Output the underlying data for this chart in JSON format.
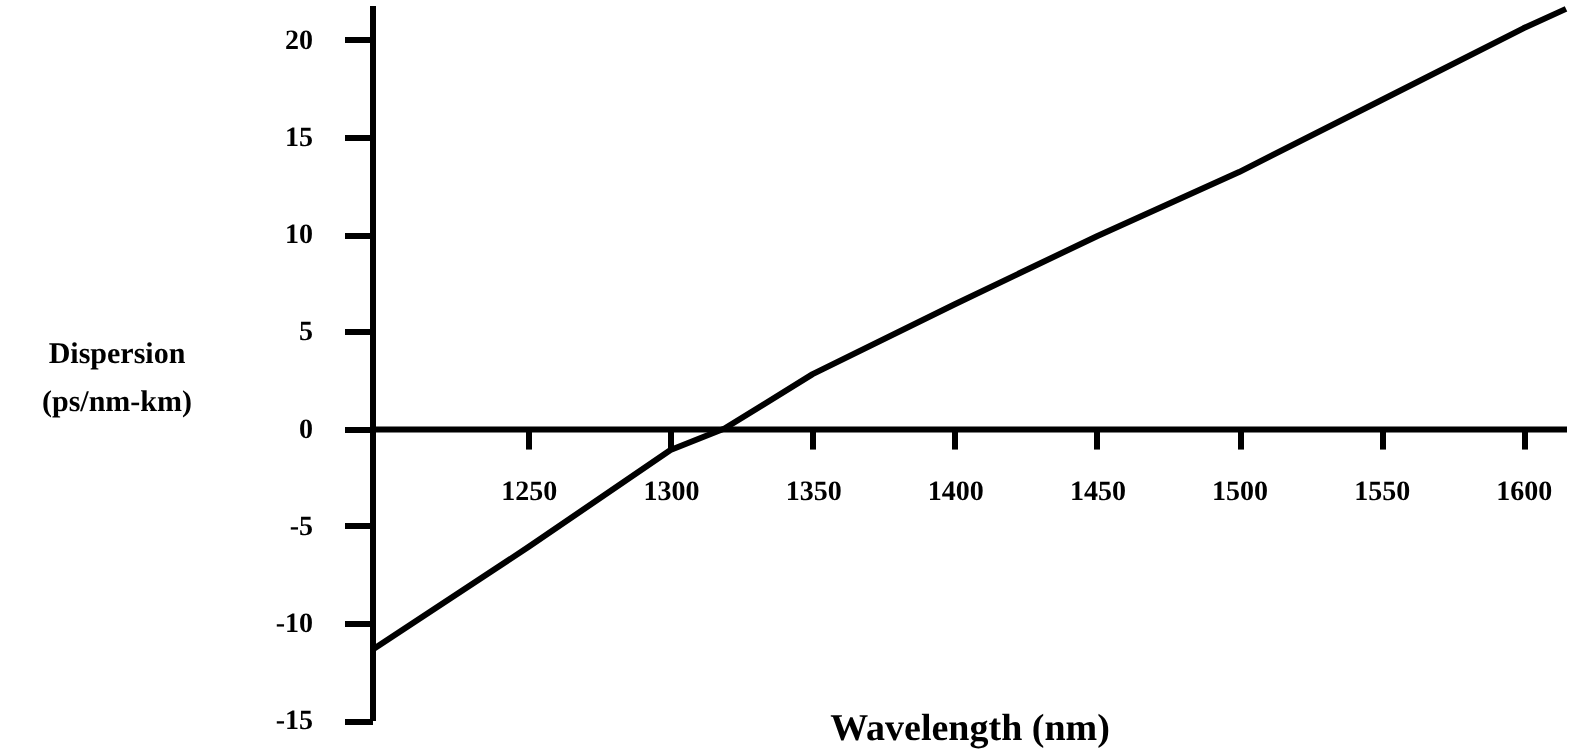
{
  "chart_data": {
    "type": "line",
    "xlabel": "Wavelength (nm)",
    "ylabel": "Dispersion (ps/nm-km)",
    "x": [
      1195,
      1250,
      1300,
      1319,
      1350,
      1400,
      1450,
      1500,
      1550,
      1600,
      1615
    ],
    "series": [
      {
        "color": "#000000",
        "values": [
          -11.4,
          -6.1,
          -1.1,
          0,
          2.8,
          6.4,
          9.9,
          13.2,
          16.9,
          20.6,
          21.6
        ]
      }
    ],
    "xlim": [
      1195,
      1615
    ],
    "xticks": [
      1250,
      1300,
      1350,
      1400,
      1450,
      1500,
      1550,
      1600
    ],
    "ylim": [
      -15,
      21.8
    ],
    "yticks": [
      -15,
      -10,
      -5,
      0,
      5,
      10,
      15,
      20
    ],
    "grid": false,
    "marker": "none",
    "line_style": "solid"
  }
}
